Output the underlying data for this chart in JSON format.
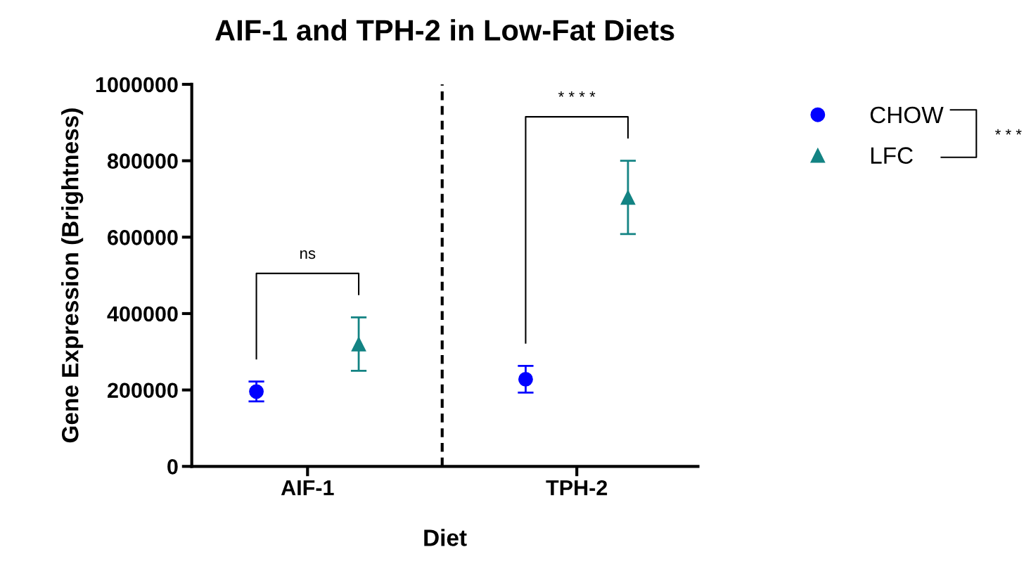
{
  "chart_data": {
    "type": "scatter",
    "title": "AIF-1 and TPH-2 in Low-Fat Diets",
    "xlabel": "Diet",
    "ylabel": "Gene Expression (Brightness)",
    "categories": [
      "AIF-1",
      "TPH-2"
    ],
    "series": [
      {
        "name": "CHOW",
        "color": "#0000ff",
        "marker": "circle",
        "values": [
          196000,
          228000
        ],
        "errors": [
          26000,
          35000
        ]
      },
      {
        "name": "LFC",
        "color": "#138383",
        "marker": "triangle",
        "values": [
          320000,
          704000
        ],
        "errors": [
          70000,
          96000
        ]
      }
    ],
    "ylim": [
      0,
      1000000
    ],
    "yticks": [
      0,
      200000,
      400000,
      600000,
      800000,
      1000000
    ],
    "annotations": [
      "ns",
      "* * * *",
      "* * *"
    ],
    "grid": false,
    "legend": "right"
  }
}
